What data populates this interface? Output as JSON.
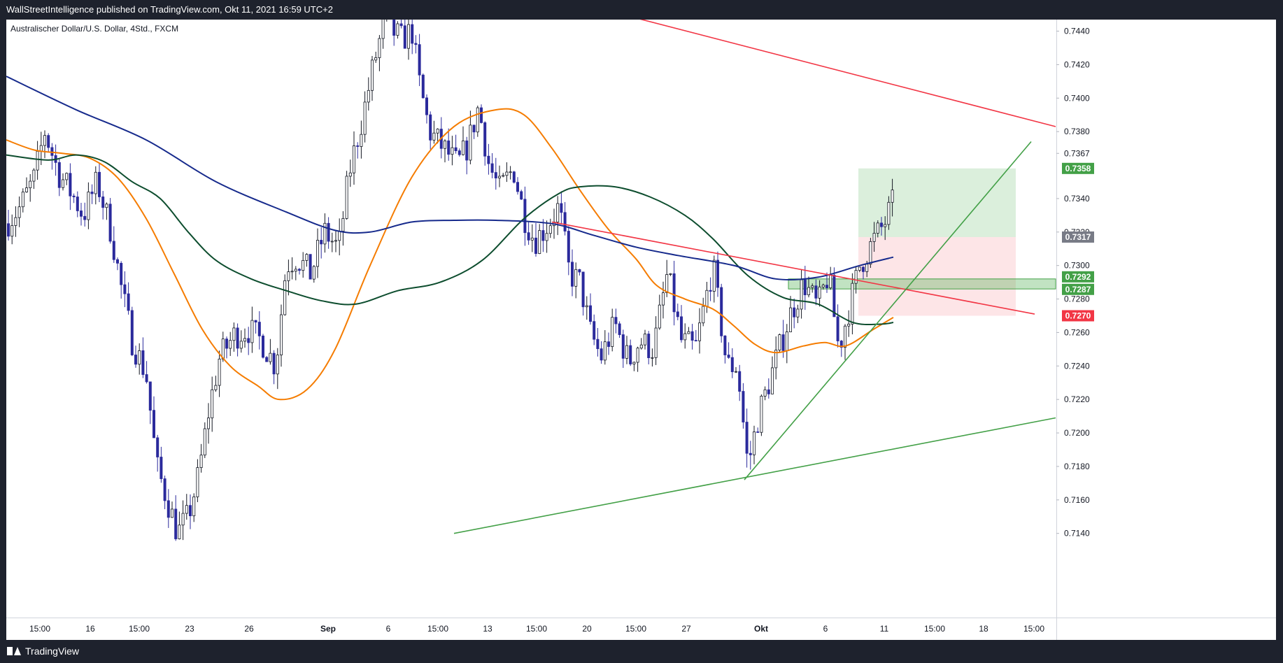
{
  "header": {
    "publisher": "WallStreetIntelligence published on TradingView.com, Okt 11, 2021 16:59 UTC+2"
  },
  "symbol": {
    "title": "Australischer Dollar/U.S. Dollar, 4Std., FXCM"
  },
  "footer": {
    "brand": "TradingView"
  },
  "colors": {
    "ema_fast": "#f57c00",
    "ema_mid": "#0d4d2e",
    "ema_slow": "#162a8c",
    "resistance": "#f23645",
    "support": "#43a047",
    "candle_up": "#ffffff",
    "candle_down": "#2b2a9c"
  },
  "chart_data": {
    "type": "line",
    "ylim": [
      0.713,
      0.745
    ],
    "y_ticks": [
      "0.7440",
      "0.7420",
      "0.7400",
      "0.7380",
      "0.7367",
      "0.7340",
      "0.7320",
      "0.7300",
      "0.7280",
      "0.7260",
      "0.7240",
      "0.7220",
      "0.7200",
      "0.7180",
      "0.7160",
      "0.7140"
    ],
    "x_ticks": [
      "15:00",
      "16",
      "15:00",
      "23",
      "26",
      "Sep",
      "6",
      "15:00",
      "13",
      "15:00",
      "20",
      "15:00",
      "27",
      "Okt",
      "6",
      "11",
      "15:00",
      "18",
      "15:00"
    ],
    "price_labels": [
      {
        "value": "0.7358",
        "kind": "target"
      },
      {
        "value": "0.7317",
        "kind": "last"
      },
      {
        "value": "0.7292",
        "kind": "zone"
      },
      {
        "value": "0.7287",
        "kind": "zone"
      },
      {
        "value": "0.7270",
        "kind": "stop"
      }
    ],
    "series": [
      {
        "key": "ema_fast",
        "points": [
          [
            0,
            0.7375
          ],
          [
            40,
            0.7369
          ],
          [
            80,
            0.7367
          ],
          [
            120,
            0.7364
          ],
          [
            160,
            0.7352
          ],
          [
            200,
            0.7328
          ],
          [
            240,
            0.7295
          ],
          [
            280,
            0.7262
          ],
          [
            320,
            0.724
          ],
          [
            360,
            0.7228
          ],
          [
            390,
            0.722
          ],
          [
            430,
            0.7226
          ],
          [
            470,
            0.725
          ],
          [
            520,
            0.73
          ],
          [
            580,
            0.7353
          ],
          [
            640,
            0.7383
          ],
          [
            700,
            0.7393
          ],
          [
            740,
            0.739
          ],
          [
            780,
            0.737
          ],
          [
            820,
            0.7345
          ],
          [
            860,
            0.7322
          ],
          [
            900,
            0.7304
          ],
          [
            930,
            0.7288
          ],
          [
            970,
            0.728
          ],
          [
            1010,
            0.7274
          ],
          [
            1040,
            0.7264
          ],
          [
            1070,
            0.7253
          ],
          [
            1100,
            0.7248
          ],
          [
            1140,
            0.7252
          ],
          [
            1170,
            0.7254
          ],
          [
            1200,
            0.7252
          ],
          [
            1240,
            0.7262
          ],
          [
            1268,
            0.7269
          ]
        ]
      },
      {
        "key": "ema_mid",
        "points": [
          [
            0,
            0.7366
          ],
          [
            60,
            0.7363
          ],
          [
            100,
            0.7366
          ],
          [
            140,
            0.7362
          ],
          [
            180,
            0.735
          ],
          [
            220,
            0.734
          ],
          [
            260,
            0.732
          ],
          [
            300,
            0.7303
          ],
          [
            350,
            0.7292
          ],
          [
            400,
            0.7285
          ],
          [
            450,
            0.7279
          ],
          [
            500,
            0.7277
          ],
          [
            560,
            0.7285
          ],
          [
            620,
            0.729
          ],
          [
            680,
            0.7303
          ],
          [
            740,
            0.7328
          ],
          [
            790,
            0.7343
          ],
          [
            820,
            0.7347
          ],
          [
            870,
            0.7347
          ],
          [
            920,
            0.7341
          ],
          [
            970,
            0.733
          ],
          [
            1010,
            0.7316
          ],
          [
            1060,
            0.7294
          ],
          [
            1110,
            0.7281
          ],
          [
            1160,
            0.7277
          ],
          [
            1210,
            0.7266
          ],
          [
            1250,
            0.7265
          ],
          [
            1268,
            0.7266
          ]
        ]
      },
      {
        "key": "ema_slow",
        "points": [
          [
            0,
            0.7413
          ],
          [
            100,
            0.7393
          ],
          [
            200,
            0.7375
          ],
          [
            300,
            0.735
          ],
          [
            400,
            0.7332
          ],
          [
            470,
            0.7321
          ],
          [
            520,
            0.732
          ],
          [
            580,
            0.7326
          ],
          [
            640,
            0.7327
          ],
          [
            700,
            0.7327
          ],
          [
            780,
            0.7325
          ],
          [
            840,
            0.7318
          ],
          [
            900,
            0.7311
          ],
          [
            960,
            0.7306
          ],
          [
            1040,
            0.73
          ],
          [
            1100,
            0.7292
          ],
          [
            1160,
            0.7293
          ],
          [
            1220,
            0.73
          ],
          [
            1268,
            0.7305
          ]
        ]
      }
    ],
    "trendlines": [
      {
        "key": "resistance",
        "points": [
          [
            880,
            0.745
          ],
          [
            1500,
            0.7383
          ]
        ]
      },
      {
        "key": "resistance",
        "points": [
          [
            780,
            0.7326
          ],
          [
            1470,
            0.7271
          ]
        ]
      },
      {
        "key": "support",
        "points": [
          [
            640,
            0.714
          ],
          [
            1500,
            0.7209
          ]
        ]
      },
      {
        "key": "support",
        "points": [
          [
            1055,
            0.7172
          ],
          [
            1465,
            0.7374
          ]
        ]
      }
    ],
    "zones": [
      {
        "kind": "target",
        "x0": 1218,
        "x1": 1443,
        "y0": 0.7317,
        "y1": 0.7358
      },
      {
        "kind": "stop",
        "x0": 1218,
        "x1": 1443,
        "y0": 0.727,
        "y1": 0.7317
      },
      {
        "kind": "entry",
        "x0": 1118,
        "x1": 1500,
        "y0": 0.7286,
        "y1": 0.7292
      }
    ]
  }
}
